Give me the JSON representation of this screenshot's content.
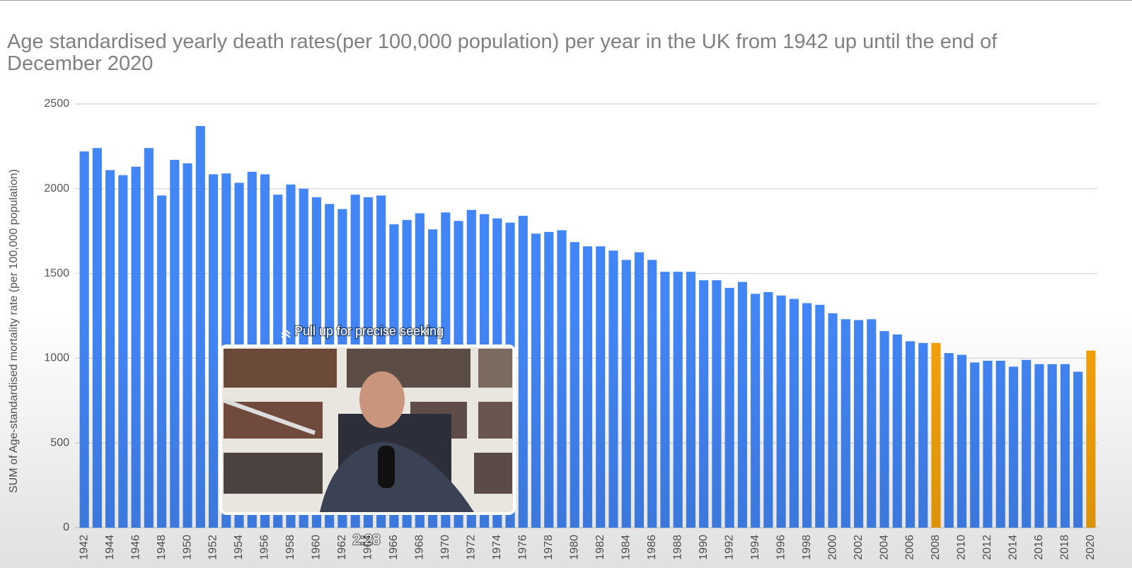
{
  "chart_data": {
    "type": "bar",
    "title": "Age standardised yearly death rates(per 100,000 population) per year in the UK from 1942 up until the end of December 2020",
    "y_label": "SUM of Age-standardised mortality rate (per 100,000 population)",
    "categories": [
      "1942",
      null,
      "1944",
      null,
      "1946",
      null,
      "1948",
      null,
      "1950",
      null,
      "1952",
      null,
      "1954",
      null,
      "1956",
      null,
      "1958",
      null,
      "1960",
      null,
      "1962",
      null,
      "1964",
      null,
      "1966",
      null,
      "1968",
      null,
      "1970",
      null,
      "1972",
      null,
      "1974",
      null,
      "1976",
      null,
      "1978",
      null,
      "1980",
      null,
      "1982",
      null,
      "1984",
      null,
      "1986",
      null,
      "1988",
      null,
      "1990",
      null,
      "1992",
      null,
      "1994",
      null,
      "1996",
      null,
      "1998",
      null,
      "2000",
      null,
      "2002",
      null,
      "2004",
      null,
      "2006",
      null,
      "2008",
      null,
      "2010",
      null,
      "2012",
      null,
      "2014",
      null,
      "2016",
      null,
      "2018",
      null,
      "2020"
    ],
    "values": [
      2220,
      2240,
      2110,
      2080,
      2130,
      2240,
      1960,
      2170,
      2150,
      2370,
      2085,
      2090,
      2035,
      2100,
      2085,
      1965,
      2025,
      2000,
      1950,
      1910,
      1880,
      1965,
      1950,
      1960,
      1790,
      1815,
      1855,
      1760,
      1860,
      1810,
      1875,
      1850,
      1825,
      1800,
      1840,
      1735,
      1745,
      1755,
      1685,
      1660,
      1660,
      1635,
      1580,
      1625,
      1580,
      1510,
      1510,
      1510,
      1460,
      1460,
      1415,
      1450,
      1380,
      1390,
      1370,
      1350,
      1325,
      1315,
      1265,
      1230,
      1225,
      1230,
      1160,
      1140,
      1100,
      1090,
      1090,
      1030,
      1020,
      975,
      985,
      985,
      950,
      990,
      965,
      965,
      965,
      920,
      1045
    ],
    "colors": [
      "#4285f4",
      "#4285f4",
      "#4285f4",
      "#4285f4",
      "#4285f4",
      "#4285f4",
      "#4285f4",
      "#4285f4",
      "#4285f4",
      "#4285f4",
      "#4285f4",
      "#4285f4",
      "#4285f4",
      "#4285f4",
      "#4285f4",
      "#4285f4",
      "#4285f4",
      "#4285f4",
      "#4285f4",
      "#4285f4",
      "#4285f4",
      "#4285f4",
      "#4285f4",
      "#4285f4",
      "#4285f4",
      "#4285f4",
      "#4285f4",
      "#4285f4",
      "#4285f4",
      "#4285f4",
      "#4285f4",
      "#4285f4",
      "#4285f4",
      "#4285f4",
      "#4285f4",
      "#4285f4",
      "#4285f4",
      "#4285f4",
      "#4285f4",
      "#4285f4",
      "#4285f4",
      "#4285f4",
      "#4285f4",
      "#4285f4",
      "#4285f4",
      "#4285f4",
      "#4285f4",
      "#4285f4",
      "#4285f4",
      "#4285f4",
      "#4285f4",
      "#4285f4",
      "#4285f4",
      "#4285f4",
      "#4285f4",
      "#4285f4",
      "#4285f4",
      "#4285f4",
      "#4285f4",
      "#4285f4",
      "#4285f4",
      "#4285f4",
      "#4285f4",
      "#4285f4",
      "#4285f4",
      "#4285f4",
      "#f4a20c",
      "#4285f4",
      "#4285f4",
      "#4285f4",
      "#4285f4",
      "#4285f4",
      "#4285f4",
      "#4285f4",
      "#4285f4",
      "#4285f4",
      "#4285f4",
      "#4285f4",
      "#f4a20c"
    ],
    "ylim": [
      0,
      2500
    ],
    "yticks": [
      0,
      500,
      1000,
      1500,
      2000,
      2500
    ],
    "grid": true
  },
  "overlay": {
    "hint": "Pull up for precise seeking",
    "time": "2:28"
  }
}
